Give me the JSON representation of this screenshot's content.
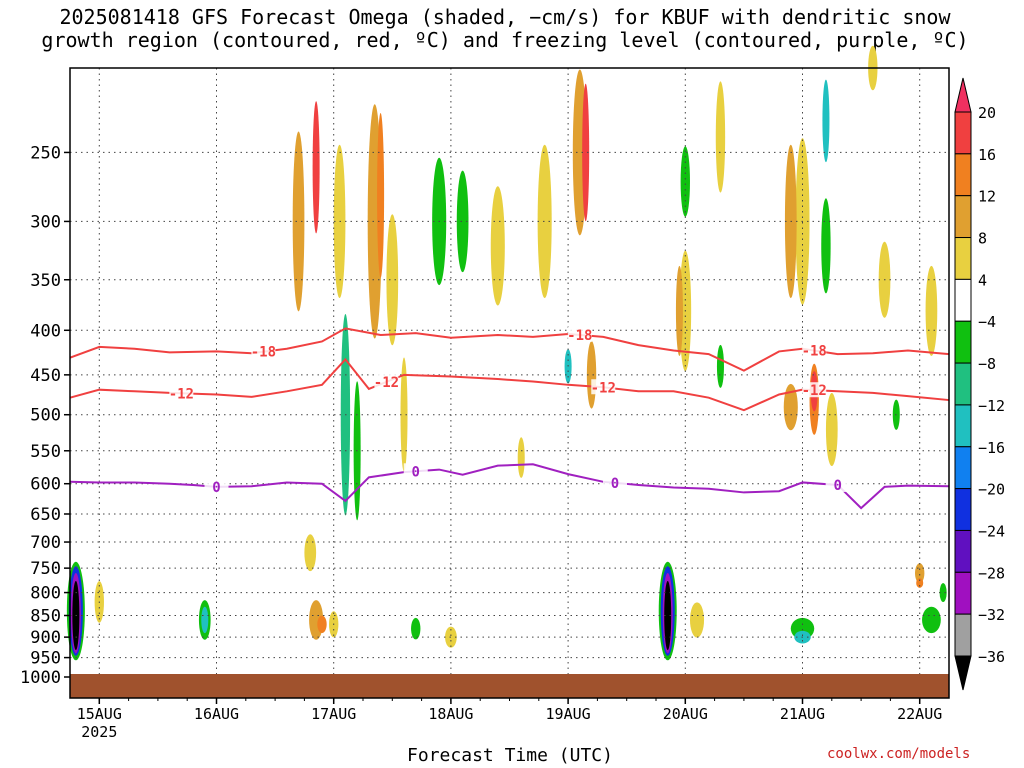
{
  "title_lines": [
    "2025081418 GFS Forecast Omega (shaded, −cm/s) for KBUF with dendritic snow",
    "growth region (contoured, red, ºC) and freezing level (contoured, purple, ºC)"
  ],
  "watermark": "coolwx.com/models",
  "chart_data": {
    "type": "heatmap",
    "xlabel": "Forecast Time (UTC)",
    "ylabel": "",
    "x_ticks": [
      "15AUG",
      "16AUG",
      "17AUG",
      "18AUG",
      "19AUG",
      "20AUG",
      "21AUG",
      "22AUG"
    ],
    "x_year_label": "2025",
    "y_axis": "pressure (hPa), reversed",
    "y_ticks": [
      250,
      300,
      350,
      400,
      450,
      500,
      550,
      600,
      650,
      700,
      750,
      800,
      850,
      900,
      950,
      1000
    ],
    "ylim": [
      1000,
      200
    ],
    "xlim_days": [
      14.75,
      22.25
    ],
    "grid": "dotted",
    "colorbar": {
      "labels": [
        "20",
        "16",
        "12",
        "8",
        "4",
        "−4",
        "−8",
        "−12",
        "−16",
        "−20",
        "−24",
        "−28",
        "−32",
        "−36"
      ],
      "colors": [
        "#f03060",
        "#f04040",
        "#f08020",
        "#e0a030",
        "#e8d040",
        "#ffffff",
        "#10c010",
        "#20c080",
        "#20c0c0",
        "#1080f0",
        "#1030e0",
        "#6010c0",
        "#a010c0",
        "#a0a0a0",
        "#000000"
      ]
    },
    "series": [
      {
        "name": "-18",
        "color": "#f04040",
        "x": [
          14.75,
          15.0,
          15.3,
          15.6,
          16.0,
          16.3,
          16.6,
          16.9,
          17.1,
          17.4,
          17.7,
          18.0,
          18.4,
          18.7,
          19.0,
          19.3,
          19.6,
          19.9,
          20.2,
          20.5,
          20.8,
          21.0,
          21.3,
          21.6,
          21.9,
          22.25
        ],
        "y": [
          430,
          418,
          420,
          424,
          423,
          425,
          420,
          412,
          398,
          405,
          403,
          408,
          405,
          407,
          404,
          407,
          416,
          422,
          426,
          445,
          423,
          420,
          426,
          425,
          422,
          426
        ]
      },
      {
        "name": "-12",
        "color": "#f04040",
        "x": [
          14.75,
          15.0,
          15.3,
          15.6,
          16.0,
          16.3,
          16.6,
          16.9,
          17.1,
          17.3,
          17.6,
          18.0,
          18.4,
          18.7,
          19.0,
          19.3,
          19.6,
          19.9,
          20.2,
          20.5,
          20.8,
          21.0,
          21.3,
          21.6,
          21.9,
          22.25
        ],
        "y": [
          478,
          468,
          470,
          472,
          474,
          477,
          470,
          462,
          432,
          467,
          450,
          452,
          455,
          458,
          462,
          465,
          470,
          470,
          478,
          494,
          474,
          468,
          470,
          472,
          476,
          481
        ]
      },
      {
        "name": "0",
        "color": "#a020c0",
        "x": [
          14.75,
          15.0,
          15.3,
          15.6,
          15.8,
          16.0,
          16.3,
          16.6,
          16.9,
          17.1,
          17.3,
          17.6,
          17.9,
          18.1,
          18.4,
          18.7,
          19.0,
          19.3,
          19.6,
          19.9,
          20.2,
          20.5,
          20.8,
          21.0,
          21.3,
          21.5,
          21.7,
          21.9,
          22.25
        ],
        "y": [
          597,
          598,
          598,
          600,
          602,
          605,
          604,
          598,
          600,
          628,
          590,
          582,
          578,
          586,
          572,
          570,
          585,
          597,
          602,
          606,
          608,
          614,
          612,
          598,
          602,
          640,
          605,
          603,
          604
        ]
      }
    ]
  }
}
